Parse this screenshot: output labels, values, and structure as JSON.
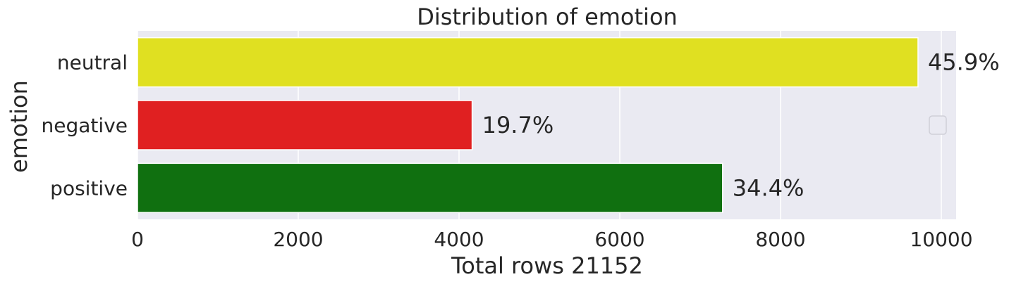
{
  "chart_data": {
    "type": "bar",
    "orientation": "horizontal",
    "title": "Distribution of emotion",
    "xlabel": "Total rows 21152",
    "ylabel": "emotion",
    "categories": [
      "neutral",
      "negative",
      "positive"
    ],
    "values": [
      9710,
      4163,
      7279
    ],
    "data_labels": [
      "45.9%",
      "19.7%",
      "34.4%"
    ],
    "colors": [
      "#e0e021",
      "#e02021",
      "#107010"
    ],
    "x_ticks": [
      "0",
      "2000",
      "4000",
      "6000",
      "8000",
      "10000"
    ],
    "xlim": [
      0,
      10200
    ],
    "grid": true,
    "legend": "empty, right"
  }
}
